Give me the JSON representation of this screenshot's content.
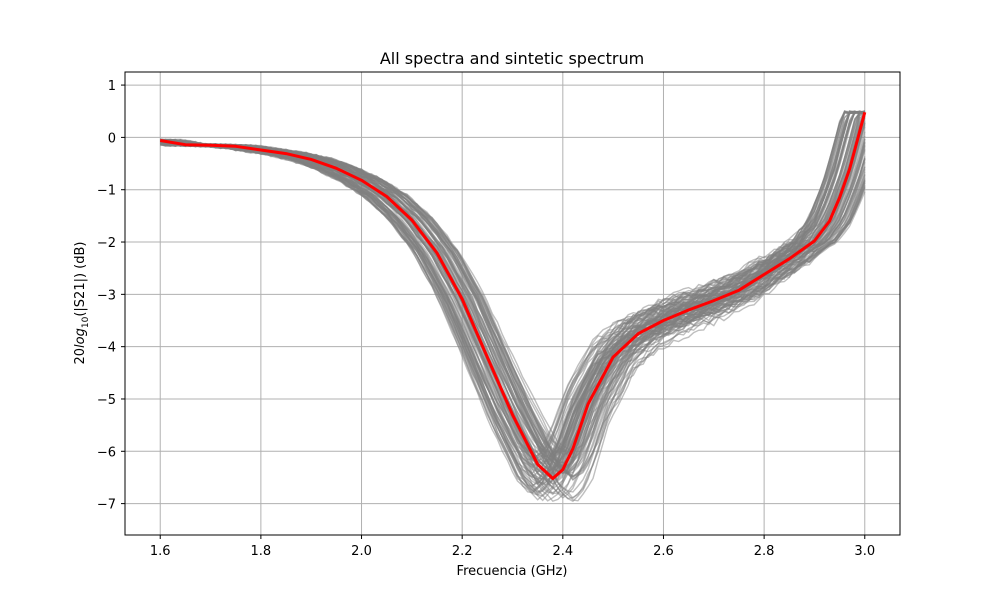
{
  "chart_data": {
    "type": "line",
    "title": "All spectra and sintetic spectrum",
    "xlabel": "Frecuencia (GHz)",
    "ylabel_prefix": "20",
    "ylabel_log": "log",
    "ylabel_sub": "10",
    "ylabel_suffix": "(|S21|) (dB)",
    "xlim": [
      1.53,
      3.07
    ],
    "ylim": [
      -7.6,
      1.25
    ],
    "xticks": [
      1.6,
      1.8,
      2.0,
      2.2,
      2.4,
      2.6,
      2.8,
      3.0
    ],
    "xtick_labels": [
      "1.6",
      "1.8",
      "2.0",
      "2.2",
      "2.4",
      "2.6",
      "2.8",
      "3.0"
    ],
    "yticks": [
      1,
      0,
      -1,
      -2,
      -3,
      -4,
      -5,
      -6,
      -7
    ],
    "ytick_labels": [
      "1",
      "0",
      "−1",
      "−2",
      "−3",
      "−4",
      "−5",
      "−6",
      "−7"
    ],
    "grid": true,
    "colors": {
      "measured": "#808080",
      "synthetic": "#ff0000",
      "grid": "#b0b0b0"
    },
    "measured_count": 100,
    "series": [
      {
        "role": "synthetic",
        "x": [
          1.6,
          1.65,
          1.7,
          1.75,
          1.8,
          1.85,
          1.9,
          1.95,
          2.0,
          2.05,
          2.1,
          2.15,
          2.2,
          2.25,
          2.3,
          2.35,
          2.38,
          2.4,
          2.42,
          2.45,
          2.5,
          2.55,
          2.6,
          2.65,
          2.7,
          2.75,
          2.8,
          2.85,
          2.9,
          2.93,
          2.95,
          2.97,
          3.0
        ],
        "y": [
          -0.06,
          -0.14,
          -0.15,
          -0.17,
          -0.24,
          -0.31,
          -0.42,
          -0.59,
          -0.82,
          -1.13,
          -1.58,
          -2.21,
          -3.09,
          -4.2,
          -5.3,
          -6.25,
          -6.52,
          -6.35,
          -5.95,
          -5.1,
          -4.2,
          -3.75,
          -3.5,
          -3.3,
          -3.12,
          -2.92,
          -2.62,
          -2.32,
          -1.98,
          -1.6,
          -1.15,
          -0.6,
          0.48
        ]
      }
    ]
  }
}
